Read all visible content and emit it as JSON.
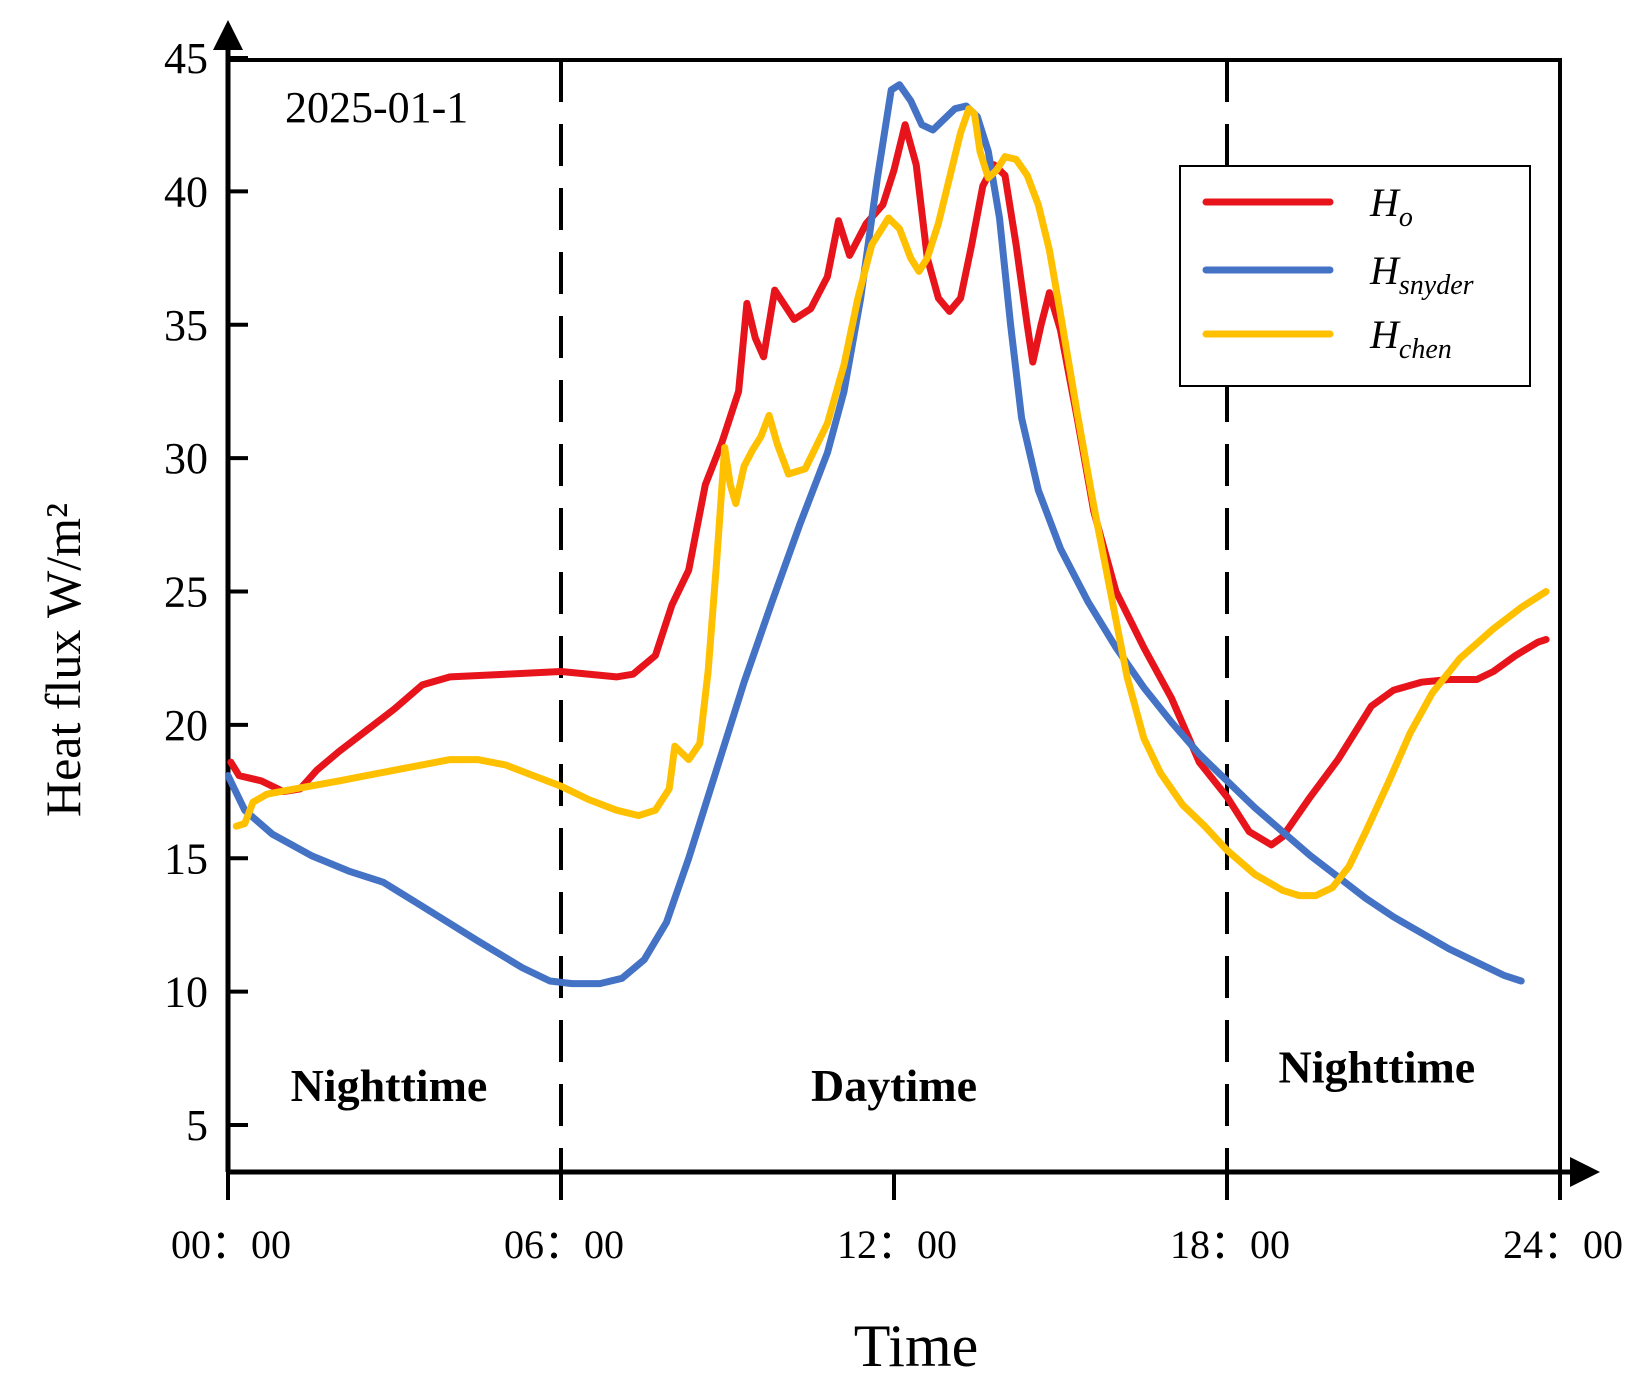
{
  "chart_data": {
    "type": "line",
    "title": "",
    "date_label": "2025-01-1",
    "xlabel": "Time",
    "ylabel": "Heat flux W/m²",
    "xlim": [
      0,
      24
    ],
    "ylim": [
      3,
      45
    ],
    "x_ticks": [
      {
        "value": 0,
        "label": "00：00"
      },
      {
        "value": 6,
        "label": "06：00"
      },
      {
        "value": 12,
        "label": "12：00"
      },
      {
        "value": 18,
        "label": "18：00"
      },
      {
        "value": 24,
        "label": "24：00"
      }
    ],
    "y_ticks": [
      5,
      10,
      15,
      20,
      25,
      30,
      35,
      40,
      45
    ],
    "dividers": [
      6,
      18
    ],
    "period_labels": [
      {
        "text": "Nighttime",
        "x": 2.9,
        "y": 5.9
      },
      {
        "text": "Daytime",
        "x": 12.0,
        "y": 5.9
      },
      {
        "text": "Nighttime",
        "x": 20.7,
        "y": 6.6
      }
    ],
    "legend_position": "top-right",
    "series": [
      {
        "name": "H",
        "subscript": "o",
        "color": "#e8141c",
        "points": [
          [
            0.05,
            18.6
          ],
          [
            0.2,
            18.1
          ],
          [
            0.6,
            17.9
          ],
          [
            1.0,
            17.5
          ],
          [
            1.3,
            17.6
          ],
          [
            1.6,
            18.3
          ],
          [
            2.0,
            19.0
          ],
          [
            2.5,
            19.8
          ],
          [
            3.0,
            20.6
          ],
          [
            3.5,
            21.5
          ],
          [
            4.0,
            21.8
          ],
          [
            5.0,
            21.9
          ],
          [
            6.0,
            22.0
          ],
          [
            7.0,
            21.8
          ],
          [
            7.3,
            21.9
          ],
          [
            7.7,
            22.6
          ],
          [
            8.0,
            24.5
          ],
          [
            8.3,
            25.8
          ],
          [
            8.6,
            29.0
          ],
          [
            8.9,
            30.6
          ],
          [
            9.2,
            32.5
          ],
          [
            9.35,
            35.8
          ],
          [
            9.5,
            34.5
          ],
          [
            9.65,
            33.8
          ],
          [
            9.85,
            36.3
          ],
          [
            10.2,
            35.2
          ],
          [
            10.5,
            35.6
          ],
          [
            10.8,
            36.8
          ],
          [
            11.0,
            38.9
          ],
          [
            11.2,
            37.6
          ],
          [
            11.5,
            38.8
          ],
          [
            11.8,
            39.5
          ],
          [
            12.0,
            40.8
          ],
          [
            12.2,
            42.5
          ],
          [
            12.4,
            41.0
          ],
          [
            12.6,
            37.5
          ],
          [
            12.8,
            36.0
          ],
          [
            13.0,
            35.5
          ],
          [
            13.2,
            36.0
          ],
          [
            13.4,
            38.0
          ],
          [
            13.6,
            40.2
          ],
          [
            13.8,
            41.0
          ],
          [
            14.0,
            40.6
          ],
          [
            14.2,
            38.0
          ],
          [
            14.4,
            35.0
          ],
          [
            14.5,
            33.6
          ],
          [
            14.65,
            35.0
          ],
          [
            14.8,
            36.2
          ],
          [
            15.0,
            34.8
          ],
          [
            15.3,
            31.5
          ],
          [
            15.6,
            28.0
          ],
          [
            16.0,
            25.0
          ],
          [
            16.5,
            22.9
          ],
          [
            17.0,
            21.0
          ],
          [
            17.5,
            18.6
          ],
          [
            18.0,
            17.3
          ],
          [
            18.4,
            16.0
          ],
          [
            18.8,
            15.5
          ],
          [
            19.0,
            15.8
          ],
          [
            19.5,
            17.3
          ],
          [
            20.0,
            18.7
          ],
          [
            20.3,
            19.7
          ],
          [
            20.6,
            20.7
          ],
          [
            21.0,
            21.3
          ],
          [
            21.5,
            21.6
          ],
          [
            22.0,
            21.7
          ],
          [
            22.5,
            21.7
          ],
          [
            22.8,
            22.0
          ],
          [
            23.2,
            22.6
          ],
          [
            23.6,
            23.1
          ],
          [
            23.75,
            23.2
          ]
        ]
      },
      {
        "name": "H",
        "subscript": "snyder",
        "color": "#4472c4",
        "points": [
          [
            0.0,
            18.1
          ],
          [
            0.3,
            16.8
          ],
          [
            0.8,
            15.9
          ],
          [
            1.5,
            15.1
          ],
          [
            2.2,
            14.5
          ],
          [
            2.8,
            14.1
          ],
          [
            3.5,
            13.2
          ],
          [
            4.5,
            11.9
          ],
          [
            5.3,
            10.9
          ],
          [
            5.8,
            10.4
          ],
          [
            6.2,
            10.3
          ],
          [
            6.7,
            10.3
          ],
          [
            7.1,
            10.5
          ],
          [
            7.5,
            11.2
          ],
          [
            7.9,
            12.6
          ],
          [
            8.3,
            15.0
          ],
          [
            8.8,
            18.3
          ],
          [
            9.3,
            21.6
          ],
          [
            9.8,
            24.6
          ],
          [
            10.3,
            27.5
          ],
          [
            10.8,
            30.2
          ],
          [
            11.1,
            32.5
          ],
          [
            11.4,
            36.0
          ],
          [
            11.7,
            40.5
          ],
          [
            11.95,
            43.8
          ],
          [
            12.1,
            44.0
          ],
          [
            12.3,
            43.4
          ],
          [
            12.5,
            42.5
          ],
          [
            12.7,
            42.3
          ],
          [
            12.9,
            42.7
          ],
          [
            13.1,
            43.1
          ],
          [
            13.3,
            43.2
          ],
          [
            13.5,
            42.8
          ],
          [
            13.7,
            41.5
          ],
          [
            13.9,
            39.0
          ],
          [
            14.1,
            35.0
          ],
          [
            14.3,
            31.5
          ],
          [
            14.6,
            28.8
          ],
          [
            15.0,
            26.6
          ],
          [
            15.5,
            24.6
          ],
          [
            16.0,
            22.9
          ],
          [
            16.5,
            21.4
          ],
          [
            17.0,
            20.1
          ],
          [
            17.5,
            18.9
          ],
          [
            18.0,
            17.9
          ],
          [
            18.5,
            16.9
          ],
          [
            19.0,
            16.0
          ],
          [
            19.5,
            15.1
          ],
          [
            20.0,
            14.3
          ],
          [
            20.5,
            13.5
          ],
          [
            21.0,
            12.8
          ],
          [
            21.5,
            12.2
          ],
          [
            22.0,
            11.6
          ],
          [
            22.5,
            11.1
          ],
          [
            23.0,
            10.6
          ],
          [
            23.3,
            10.4
          ]
        ]
      },
      {
        "name": "H",
        "subscript": "chen",
        "color": "#ffc000",
        "points": [
          [
            0.15,
            16.2
          ],
          [
            0.3,
            16.3
          ],
          [
            0.45,
            17.1
          ],
          [
            0.7,
            17.4
          ],
          [
            1.2,
            17.6
          ],
          [
            2.0,
            17.9
          ],
          [
            3.0,
            18.3
          ],
          [
            4.0,
            18.7
          ],
          [
            4.5,
            18.7
          ],
          [
            5.0,
            18.5
          ],
          [
            5.5,
            18.1
          ],
          [
            6.0,
            17.7
          ],
          [
            6.5,
            17.2
          ],
          [
            7.0,
            16.8
          ],
          [
            7.4,
            16.6
          ],
          [
            7.7,
            16.8
          ],
          [
            7.95,
            17.6
          ],
          [
            8.05,
            19.2
          ],
          [
            8.15,
            19.0
          ],
          [
            8.3,
            18.7
          ],
          [
            8.5,
            19.3
          ],
          [
            8.65,
            22.0
          ],
          [
            8.8,
            26.0
          ],
          [
            8.95,
            30.4
          ],
          [
            9.05,
            29.0
          ],
          [
            9.15,
            28.3
          ],
          [
            9.3,
            29.7
          ],
          [
            9.45,
            30.3
          ],
          [
            9.6,
            30.8
          ],
          [
            9.75,
            31.6
          ],
          [
            9.9,
            30.5
          ],
          [
            10.1,
            29.4
          ],
          [
            10.4,
            29.6
          ],
          [
            10.8,
            31.3
          ],
          [
            11.1,
            33.5
          ],
          [
            11.35,
            36.0
          ],
          [
            11.6,
            38.0
          ],
          [
            11.9,
            39.0
          ],
          [
            12.1,
            38.6
          ],
          [
            12.3,
            37.5
          ],
          [
            12.45,
            37.0
          ],
          [
            12.6,
            37.5
          ],
          [
            12.8,
            38.8
          ],
          [
            13.0,
            40.5
          ],
          [
            13.2,
            42.2
          ],
          [
            13.35,
            43.1
          ],
          [
            13.45,
            42.9
          ],
          [
            13.55,
            41.5
          ],
          [
            13.7,
            40.5
          ],
          [
            13.85,
            40.8
          ],
          [
            14.0,
            41.3
          ],
          [
            14.2,
            41.2
          ],
          [
            14.4,
            40.6
          ],
          [
            14.6,
            39.5
          ],
          [
            14.8,
            37.8
          ],
          [
            15.0,
            35.4
          ],
          [
            15.3,
            31.7
          ],
          [
            15.6,
            28.2
          ],
          [
            15.9,
            25.0
          ],
          [
            16.2,
            21.8
          ],
          [
            16.5,
            19.5
          ],
          [
            16.8,
            18.2
          ],
          [
            17.2,
            17.0
          ],
          [
            17.6,
            16.2
          ],
          [
            18.0,
            15.3
          ],
          [
            18.5,
            14.4
          ],
          [
            19.0,
            13.8
          ],
          [
            19.3,
            13.6
          ],
          [
            19.6,
            13.6
          ],
          [
            19.9,
            13.9
          ],
          [
            20.2,
            14.7
          ],
          [
            20.5,
            16.0
          ],
          [
            20.9,
            17.8
          ],
          [
            21.3,
            19.7
          ],
          [
            21.7,
            21.2
          ],
          [
            22.2,
            22.5
          ],
          [
            22.8,
            23.6
          ],
          [
            23.3,
            24.4
          ],
          [
            23.75,
            25.0
          ]
        ]
      }
    ]
  }
}
